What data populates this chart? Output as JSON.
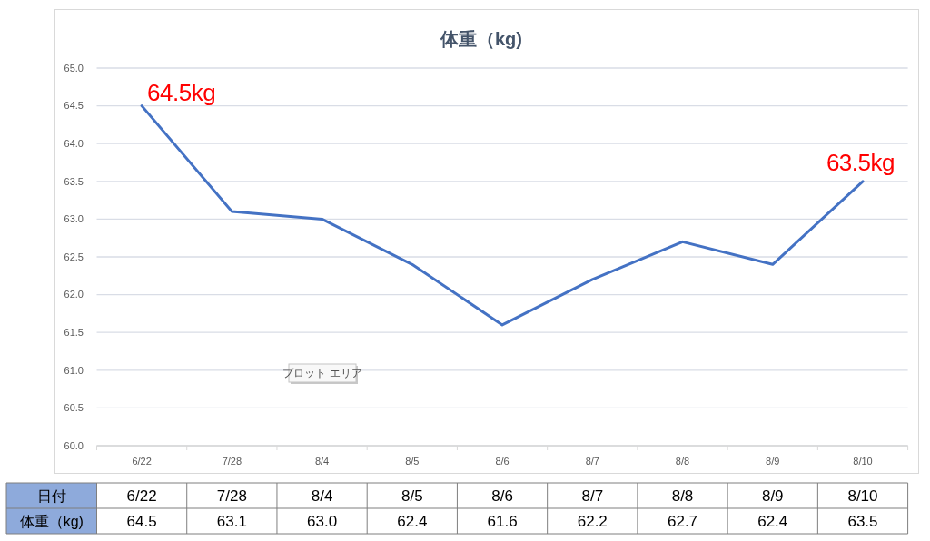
{
  "chart_data": {
    "type": "line",
    "title": "体重（kg)",
    "xlabel": "日付",
    "categories": [
      "6/22",
      "7/28",
      "8/4",
      "8/5",
      "8/6",
      "8/7",
      "8/8",
      "8/9",
      "8/10"
    ],
    "series": [
      {
        "name": "体重（kg)",
        "color": "#4472c4",
        "values": [
          64.5,
          63.1,
          63.0,
          62.4,
          61.6,
          62.2,
          62.7,
          62.4,
          63.5
        ],
        "value_labels": [
          "64.5",
          "63.1",
          "63.0",
          "62.4",
          "61.6",
          "62.2",
          "62.7",
          "62.4",
          "63.5"
        ]
      }
    ],
    "ylim": [
      60,
      65
    ],
    "yticks": [
      {
        "value": 60,
        "label": "60.0"
      },
      60.5,
      {
        "value": 61,
        "label": "61.0"
      },
      61.5,
      {
        "value": 62,
        "label": "62.0"
      },
      62.5,
      {
        "value": 63,
        "label": "63.0"
      },
      63.5,
      {
        "value": 64,
        "label": "64.0"
      },
      64.5,
      {
        "value": 65,
        "label": "65.0"
      }
    ],
    "grid": "y",
    "annotations": [
      {
        "text": "64.5kg",
        "x": "6/22",
        "y": 64.5
      },
      {
        "text": "63.5kg",
        "x": "8/10",
        "y": 63.5
      },
      "プロット エリア"
    ]
  }
}
